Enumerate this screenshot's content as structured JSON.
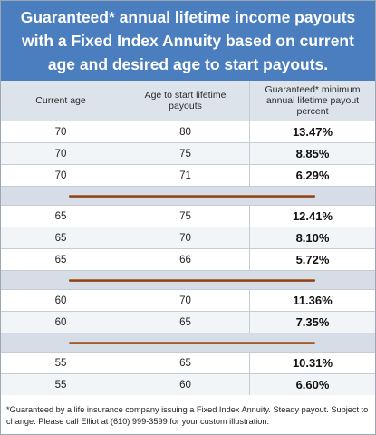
{
  "title": "Guaranteed* annual lifetime income payouts with a Fixed Index Annuity based on current age and desired age to start payouts.",
  "table": {
    "headers": [
      "Current age",
      "Age to start lifetime payouts",
      "Guaranteed* minimum annual lifetime payout percent"
    ],
    "groups": [
      {
        "rows": [
          [
            "70",
            "80",
            "13.47%"
          ],
          [
            "70",
            "75",
            "8.85%"
          ],
          [
            "70",
            "71",
            "6.29%"
          ]
        ]
      },
      {
        "rows": [
          [
            "65",
            "75",
            "12.41%"
          ],
          [
            "65",
            "70",
            "8.10%"
          ],
          [
            "65",
            "66",
            "5.72%"
          ]
        ]
      },
      {
        "rows": [
          [
            "60",
            "70",
            "11.36%"
          ],
          [
            "60",
            "65",
            "7.35%"
          ]
        ]
      },
      {
        "rows": [
          [
            "55",
            "65",
            "10.31%"
          ],
          [
            "55",
            "60",
            "6.60%"
          ]
        ]
      }
    ]
  },
  "footnote": "*Guaranteed by a life insurance company issuing a Fixed Index Annuity.  Steady  payout. Subject to change.  Please call Elliot at (610) 999-3599 for your custom illustration."
}
